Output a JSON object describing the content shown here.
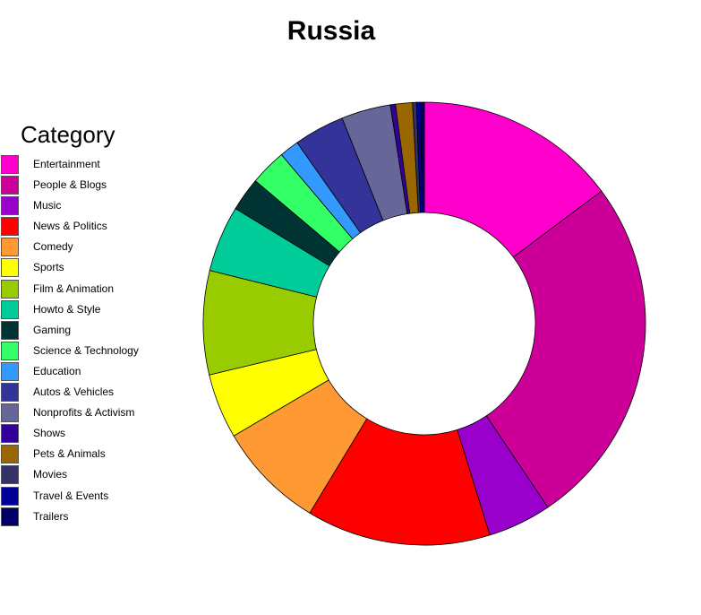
{
  "chart_data": {
    "type": "pie",
    "title": "Russia",
    "legend_title": "Category",
    "legend_position": "left",
    "donut": true,
    "slices": [
      {
        "label": "Entertainment",
        "value": 15.6,
        "color": "#FF00CC"
      },
      {
        "label": "People & Blogs",
        "value": 27.2,
        "color": "#CC0099"
      },
      {
        "label": "Music",
        "value": 4.9,
        "color": "#9900CC"
      },
      {
        "label": "News & Politics",
        "value": 14.2,
        "color": "#FF0000"
      },
      {
        "label": "Comedy",
        "value": 8.3,
        "color": "#FF9933"
      },
      {
        "label": "Sports",
        "value": 5.0,
        "color": "#FFFF00"
      },
      {
        "label": "Film & Animation",
        "value": 8.0,
        "color": "#99CC00"
      },
      {
        "label": "Howto & Style",
        "value": 5.1,
        "color": "#00CC99"
      },
      {
        "label": "Gaming",
        "value": 2.6,
        "color": "#003333"
      },
      {
        "label": "Science & Technology",
        "value": 2.8,
        "color": "#33FF66"
      },
      {
        "label": "Education",
        "value": 1.5,
        "color": "#3399FF"
      },
      {
        "label": "Autos & Vehicles",
        "value": 3.9,
        "color": "#333399"
      },
      {
        "label": "Nonprofits & Activism",
        "value": 3.8,
        "color": "#666699"
      },
      {
        "label": "Shows",
        "value": 0.4,
        "color": "#330099"
      },
      {
        "label": "Pets & Animals",
        "value": 1.3,
        "color": "#996600"
      },
      {
        "label": "Movies",
        "value": 0.3,
        "color": "#333366"
      },
      {
        "label": "Travel & Events",
        "value": 0.3,
        "color": "#000099"
      },
      {
        "label": "Trailers",
        "value": 0.3,
        "color": "#000066"
      }
    ]
  }
}
